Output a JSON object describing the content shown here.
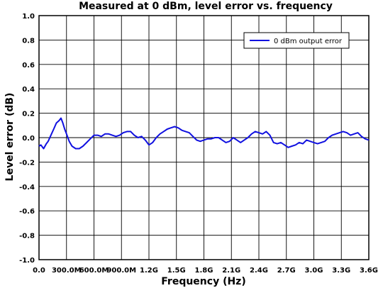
{
  "chart_data": {
    "type": "line",
    "title": "Measured at 0 dBm, level error vs. frequency",
    "xlabel": "Frequency (Hz)",
    "ylabel": "Level error (dB)",
    "xlim": [
      0,
      3.6
    ],
    "ylim": [
      -1.0,
      1.0
    ],
    "x_unit": "GHz",
    "grid": true,
    "legend": "top-right",
    "xticks": [
      0,
      0.3,
      0.6,
      0.9,
      1.2,
      1.5,
      1.8,
      2.1,
      2.4,
      2.7,
      3.0,
      3.3,
      3.6
    ],
    "xtick_labels": [
      "0.0",
      "300.0M",
      "600.0M",
      "900.0M",
      "1.2G",
      "1.5G",
      "1.8G",
      "2.1G",
      "2.4G",
      "2.7G",
      "3.0G",
      "3.3G",
      "3.6G"
    ],
    "yticks": [
      -1.0,
      -0.8,
      -0.6,
      -0.4,
      -0.2,
      0.0,
      0.2,
      0.4,
      0.6,
      0.8,
      1.0
    ],
    "ytick_labels": [
      "-1.0",
      "-0.8",
      "-0.6",
      "-0.4",
      "-0.2",
      "0.0",
      "0.2",
      "0.4",
      "0.6",
      "0.8",
      "1.0"
    ],
    "series": [
      {
        "name": "0 dBm output error",
        "color": "#1010e0",
        "x": [
          0.0,
          0.02,
          0.05,
          0.08,
          0.1,
          0.13,
          0.16,
          0.19,
          0.22,
          0.24,
          0.26,
          0.28,
          0.3,
          0.33,
          0.36,
          0.4,
          0.44,
          0.48,
          0.52,
          0.56,
          0.6,
          0.64,
          0.68,
          0.72,
          0.76,
          0.8,
          0.84,
          0.88,
          0.92,
          0.96,
          1.0,
          1.04,
          1.08,
          1.12,
          1.16,
          1.2,
          1.24,
          1.28,
          1.32,
          1.36,
          1.4,
          1.44,
          1.48,
          1.52,
          1.56,
          1.6,
          1.64,
          1.68,
          1.72,
          1.76,
          1.8,
          1.84,
          1.88,
          1.92,
          1.96,
          2.0,
          2.04,
          2.08,
          2.12,
          2.16,
          2.2,
          2.24,
          2.28,
          2.32,
          2.36,
          2.4,
          2.44,
          2.48,
          2.52,
          2.56,
          2.6,
          2.64,
          2.68,
          2.72,
          2.76,
          2.8,
          2.84,
          2.88,
          2.92,
          2.96,
          3.0,
          3.04,
          3.08,
          3.12,
          3.16,
          3.2,
          3.24,
          3.28,
          3.32,
          3.36,
          3.4,
          3.44,
          3.48,
          3.52,
          3.56,
          3.6
        ],
        "y": [
          -0.07,
          -0.06,
          -0.09,
          -0.05,
          -0.03,
          0.02,
          0.07,
          0.12,
          0.14,
          0.16,
          0.12,
          0.07,
          0.03,
          -0.03,
          -0.07,
          -0.09,
          -0.09,
          -0.07,
          -0.04,
          -0.01,
          0.02,
          0.02,
          0.01,
          0.03,
          0.03,
          0.02,
          0.01,
          0.02,
          0.04,
          0.05,
          0.05,
          0.02,
          0.0,
          0.01,
          -0.02,
          -0.06,
          -0.04,
          0.0,
          0.03,
          0.05,
          0.07,
          0.08,
          0.09,
          0.08,
          0.06,
          0.05,
          0.04,
          0.01,
          -0.02,
          -0.03,
          -0.02,
          -0.01,
          -0.01,
          0.0,
          0.0,
          -0.02,
          -0.04,
          -0.03,
          0.0,
          -0.02,
          -0.04,
          -0.02,
          0.0,
          0.03,
          0.05,
          0.04,
          0.03,
          0.05,
          0.02,
          -0.04,
          -0.05,
          -0.04,
          -0.06,
          -0.08,
          -0.07,
          -0.06,
          -0.04,
          -0.05,
          -0.02,
          -0.03,
          -0.04,
          -0.05,
          -0.04,
          -0.03,
          0.0,
          0.02,
          0.03,
          0.04,
          0.05,
          0.04,
          0.02,
          0.03,
          0.04,
          0.01,
          -0.01,
          -0.02
        ]
      }
    ]
  }
}
